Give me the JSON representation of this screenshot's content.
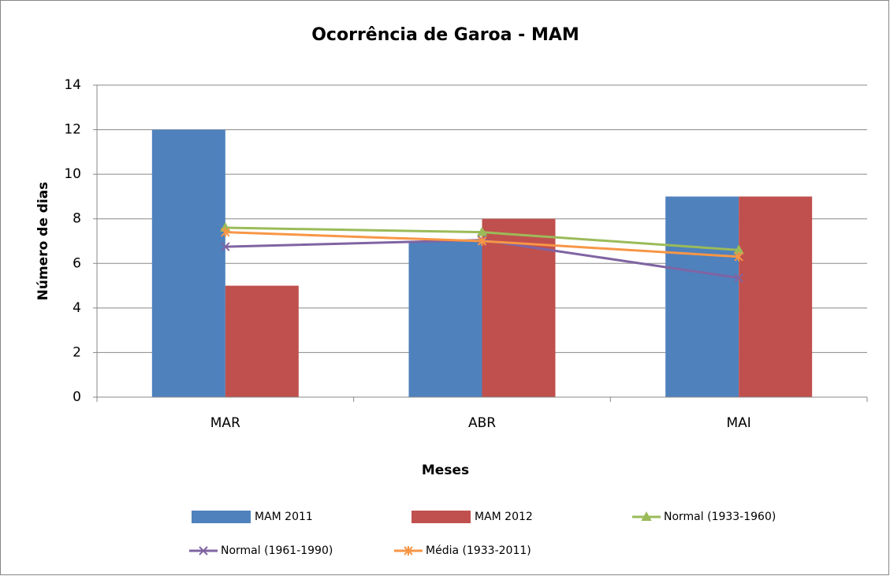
{
  "chart_data": {
    "type": "bar",
    "title": "Ocorrência de Garoa - MAM",
    "x_label": "Meses",
    "y_label": "Número de dias",
    "categories": [
      "MAR",
      "ABR",
      "MAI"
    ],
    "series": [
      {
        "name": "MAM 2011",
        "type": "bar",
        "color": "#4f81bd",
        "values": [
          12,
          7,
          9
        ]
      },
      {
        "name": "MAM 2012",
        "type": "bar",
        "color": "#c0504d",
        "values": [
          5,
          8,
          9
        ]
      },
      {
        "name": "Normal (1933-1960)",
        "type": "line",
        "marker": "triangle",
        "color": "#9bbb59",
        "values": [
          7.6,
          7.4,
          6.6
        ]
      },
      {
        "name": "Normal (1961-1990)",
        "type": "line",
        "marker": "x",
        "color": "#8064a2",
        "values": [
          6.75,
          7.05,
          5.35
        ]
      },
      {
        "name": "Média (1933-2011)",
        "type": "line",
        "marker": "star",
        "color": "#f79646",
        "values": [
          7.4,
          7.0,
          6.3
        ]
      }
    ],
    "ylim": [
      0,
      14
    ],
    "yticks": [
      0,
      2,
      4,
      6,
      8,
      10,
      12,
      14
    ],
    "grid": true
  }
}
